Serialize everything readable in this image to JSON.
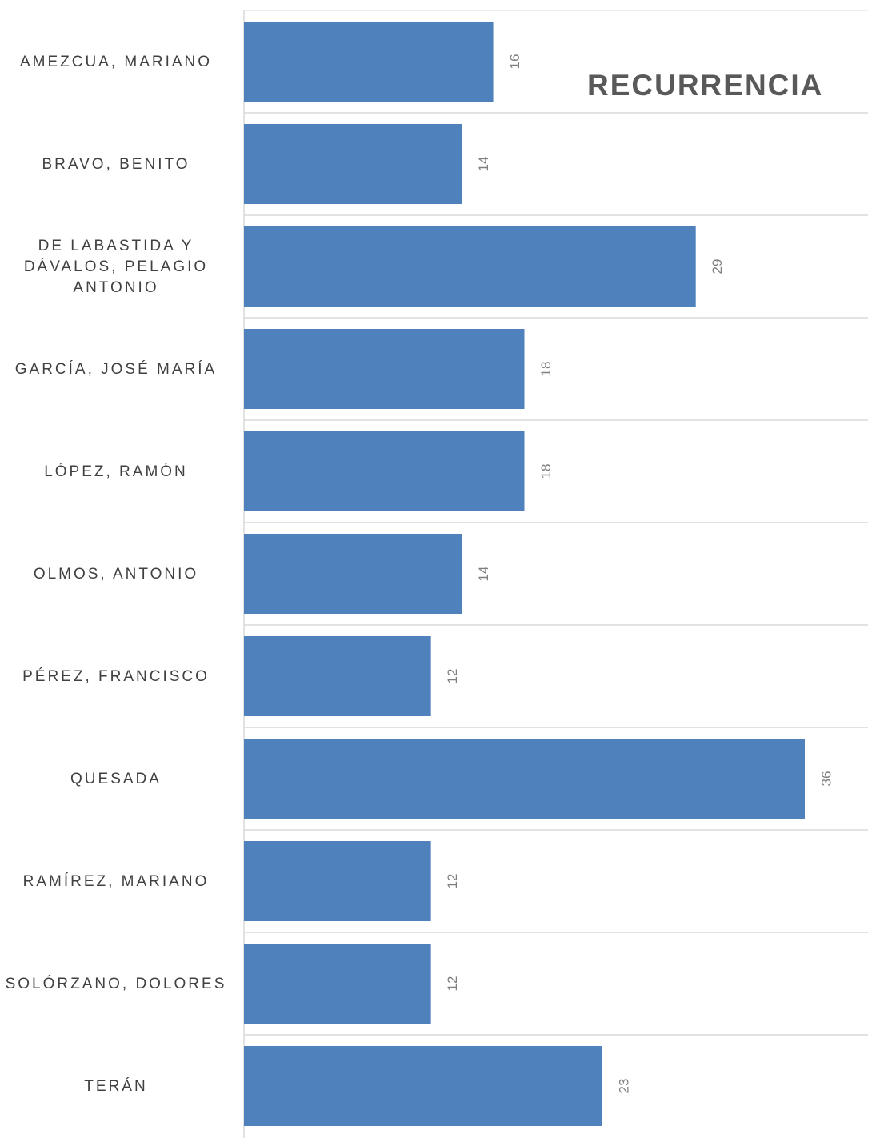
{
  "chart_data": {
    "type": "bar",
    "orientation": "horizontal",
    "title": "RECURRENCIA",
    "categories": [
      "AMEZCUA, MARIANO",
      "BRAVO, BENITO",
      "DE LABASTIDA Y DÁVALOS, PELAGIO ANTONIO",
      "GARCÍA, JOSÉ MARÍA",
      "LÓPEZ, RAMÓN",
      "OLMOS, ANTONIO",
      "PÉREZ, FRANCISCO",
      "QUESADA",
      "RAMÍREZ, MARIANO",
      "SOLÓRZANO, DOLORES",
      "TERÁN"
    ],
    "category_label_lines": [
      [
        "AMEZCUA, MARIANO"
      ],
      [
        "BRAVO, BENITO"
      ],
      [
        "DE LABASTIDA Y",
        "DÁVALOS, PELAGIO",
        "ANTONIO"
      ],
      [
        "GARCÍA, JOSÉ MARÍA"
      ],
      [
        "LÓPEZ, RAMÓN"
      ],
      [
        "OLMOS, ANTONIO"
      ],
      [
        "PÉREZ, FRANCISCO"
      ],
      [
        "QUESADA"
      ],
      [
        "RAMÍREZ, MARIANO"
      ],
      [
        "SOLÓRZANO, DOLORES"
      ],
      [
        "TERÁN"
      ]
    ],
    "values": [
      16,
      14,
      29,
      18,
      18,
      14,
      12,
      36,
      12,
      12,
      23
    ],
    "xlim": [
      0,
      40
    ],
    "xlabel": "",
    "ylabel": "",
    "data_labels": true,
    "data_label_rotation": "vertical",
    "grid": "horizontal lines between categories",
    "legend": "none",
    "colors": {
      "bar": "#4f81bd",
      "gridline": "#d9d9d9",
      "data_label": "#7f7f7f",
      "category_label": "#404040",
      "title": "#595959"
    }
  }
}
